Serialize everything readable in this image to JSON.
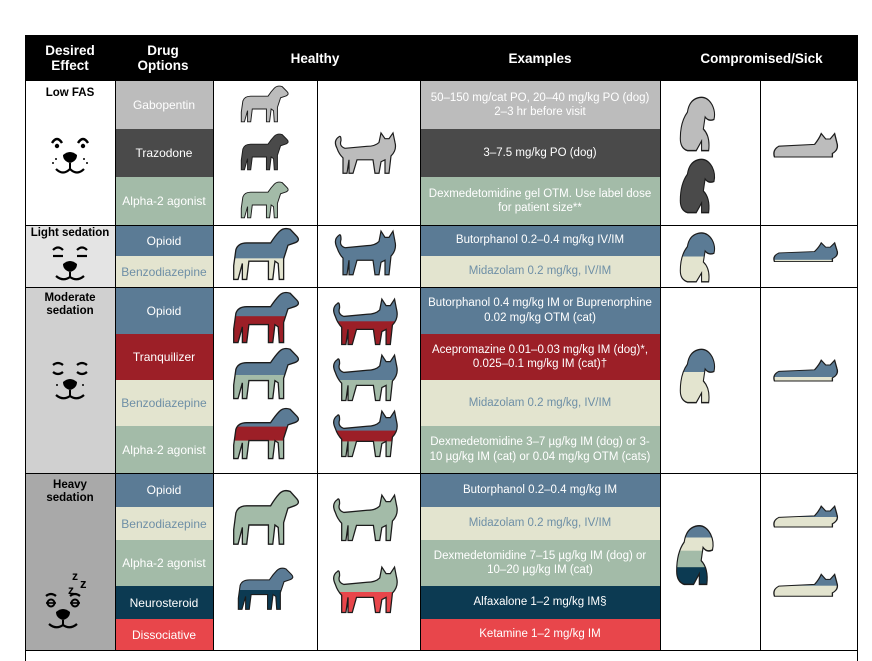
{
  "header": {
    "desired_effect": "Desired Effect",
    "drug_options": "Drug Options",
    "healthy": "Healthy",
    "examples": "Examples",
    "compromised": "Compromised/Sick"
  },
  "sections": {
    "low_fas": {
      "label": "Low FAS",
      "rows": [
        {
          "drug": "Gabopentin",
          "example": "50–150 mg/cat PO, 20–40 mg/kg PO (dog) 2–3 hr before visit"
        },
        {
          "drug": "Trazodone",
          "example": "3–7.5 mg/kg PO (dog)"
        },
        {
          "drug": "Alpha-2 agonist",
          "example": "Dexmedetomidine gel OTM. Use label dose for patient size**"
        }
      ]
    },
    "light": {
      "label": "Light sedation",
      "rows": [
        {
          "drug": "Opioid",
          "example": "Butorphanol 0.2–0.4 mg/kg IV/IM"
        },
        {
          "drug": "Benzodiazepine",
          "example": "Midazolam 0.2 mg/kg, IV/IM"
        }
      ]
    },
    "moderate": {
      "label": "Moderate sedation",
      "rows": [
        {
          "drug": "Opioid",
          "example": "Butorphanol 0.4 mg/kg IM or Buprenorphine 0.02 mg/kg OTM (cat)"
        },
        {
          "drug": "Tranquilizer",
          "example": "Acepromazine 0.01–0.03 mg/kg IM (dog)*, 0.025–0.1 mg/kg IM (cat)†"
        },
        {
          "drug": "Benzodiazepine",
          "example": "Midazolam 0.2 mg/kg, IV/IM"
        },
        {
          "drug": "Alpha-2 agonist",
          "example": "Dexmedetomidine 3–7 µg/kg IM (dog) or 3-10 µg/kg IM (cat) or 0.04 mg/kg OTM (cats)"
        }
      ]
    },
    "heavy": {
      "label": "Heavy sedation",
      "rows": [
        {
          "drug": "Opioid",
          "example": "Butorphanol 0.2–0.4 mg/kg IM"
        },
        {
          "drug": "Benzodiazepine",
          "example": "Midazolam 0.2 mg/kg, IV/IM"
        },
        {
          "drug": "Alpha-2 agonist",
          "example": "Dexmedetomidine 7–15 µg/kg IM (dog) or 10–20 µg/kg IM (cat)"
        },
        {
          "drug": "Neurosteroid",
          "example": "Alfaxalone 1–2 mg/kg IM§"
        },
        {
          "drug": "Dissociative",
          "example": "Ketamine 1–2 mg/kg IM"
        }
      ]
    }
  },
  "colors": {
    "opioid": "#5b7b95",
    "benzodiazepine": "#e3e4cf",
    "alpha2": "#a3bba8",
    "tranquilizer": "#9c1f27",
    "neurosteroid": "#0c3a52",
    "dissociative": "#e8464b",
    "gabapentin": "#bcbcbc",
    "trazodone": "#4a4a4a"
  },
  "icons": {
    "face_low": "relaxed-face-icon",
    "face_light": "sleepy-face-icon",
    "face_moderate": "closed-eyes-face-icon",
    "face_heavy": "sleeping-face-icon",
    "dog": "dog-silhouette-icon",
    "cat": "cat-silhouette-icon"
  }
}
